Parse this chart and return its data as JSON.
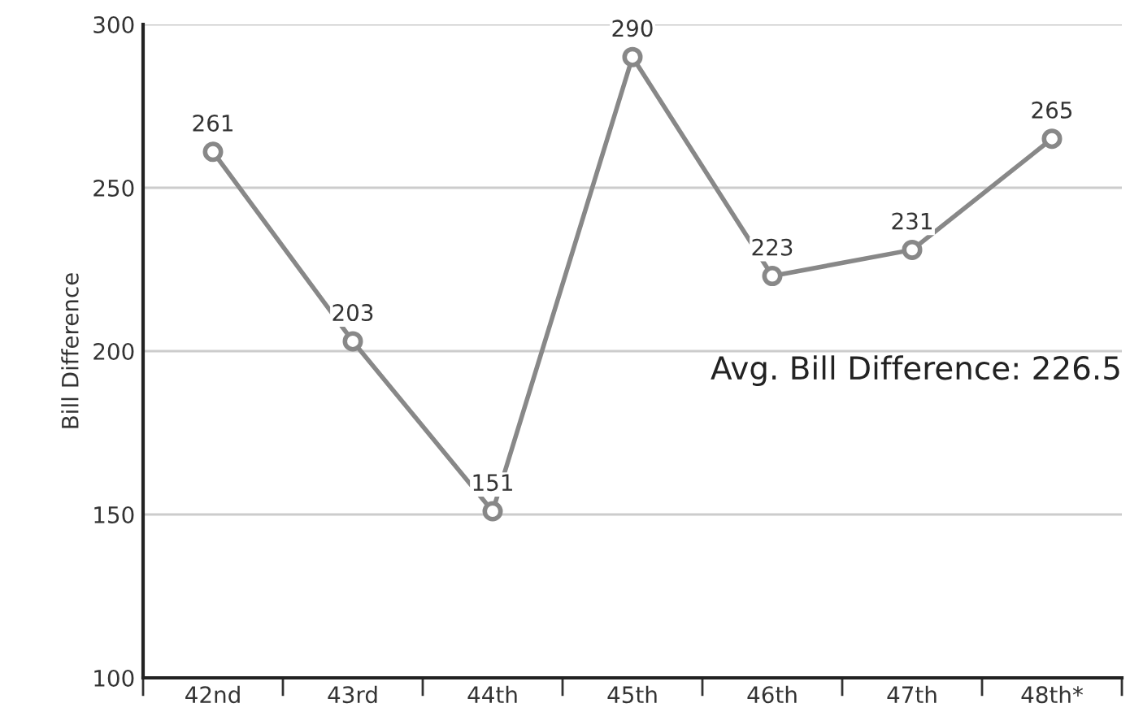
{
  "chart_data": {
    "type": "line",
    "ylabel": "Bill Difference",
    "categories": [
      "42nd",
      "43rd",
      "44th",
      "45th",
      "46th",
      "47th",
      "48th*"
    ],
    "series": [
      {
        "color": "#888888",
        "values": [
          261,
          203,
          151,
          290,
          223,
          231,
          265
        ]
      }
    ],
    "ylim": [
      100,
      300
    ],
    "yticks": [
      100,
      150,
      200,
      250,
      300
    ],
    "grid": "y",
    "marker": "circle",
    "line_style": "solid",
    "data_labels": true,
    "annotations": [
      "Avg. Bill Difference: 226.5"
    ]
  }
}
